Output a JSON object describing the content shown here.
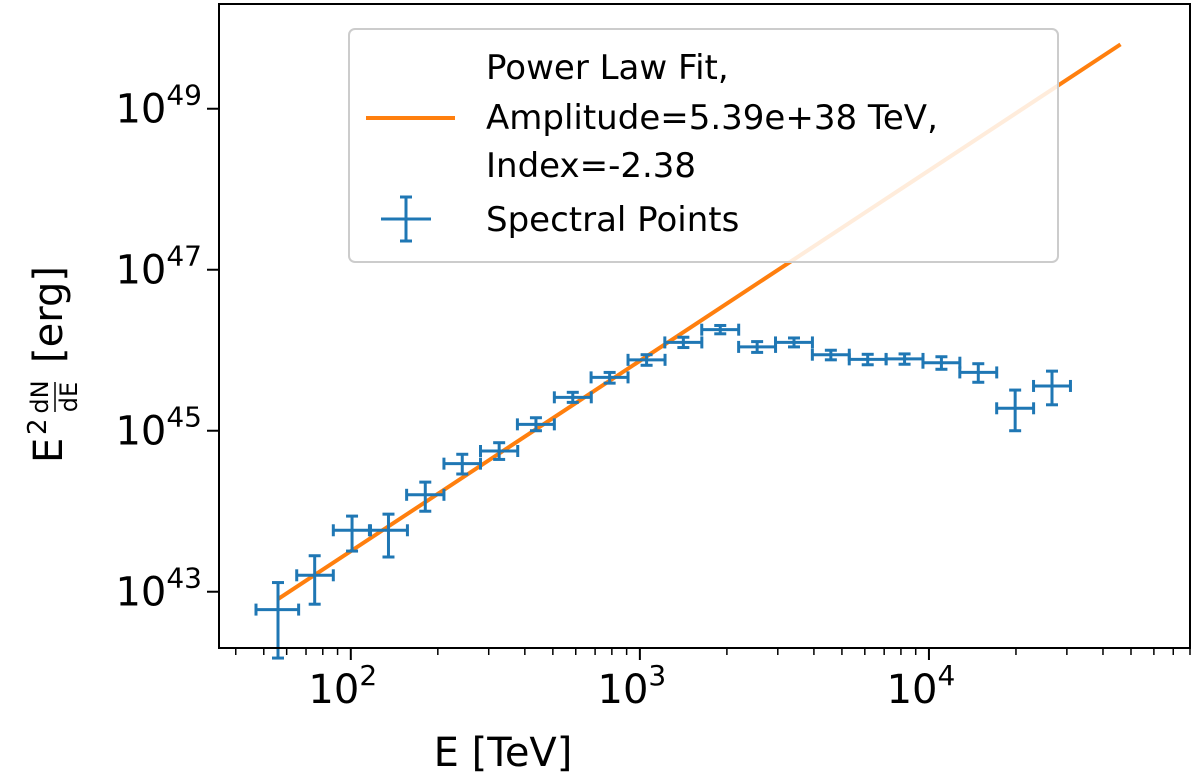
{
  "chart_data": {
    "type": "scatter",
    "xscale": "log",
    "yscale": "log",
    "xlabel": "E [TeV]",
    "ylabel": {
      "prefix": "E",
      "power": "2",
      "frac_num": "dN",
      "frac_den": "dE",
      "unit": "[erg]"
    },
    "xlim": [
      35,
      80000
    ],
    "ylim": [
      2e+42,
      2e+50
    ],
    "x_ticks": [
      {
        "value": 100,
        "base": "10",
        "exp": "2"
      },
      {
        "value": 1000,
        "base": "10",
        "exp": "3"
      },
      {
        "value": 10000,
        "base": "10",
        "exp": "4"
      }
    ],
    "y_ticks": [
      {
        "value": 1e+43,
        "base": "10",
        "exp": "43"
      },
      {
        "value": 1e+45,
        "base": "10",
        "exp": "45"
      },
      {
        "value": 1e+47,
        "base": "10",
        "exp": "47"
      },
      {
        "value": 1e+49,
        "base": "10",
        "exp": "49"
      }
    ],
    "series": [
      {
        "name": "Power Law Fit",
        "kind": "line",
        "color": "#ff7f0e",
        "x": [
          56,
          46000
        ],
        "y": [
          8.1e+42,
          6.3e+49
        ]
      },
      {
        "name": "Spectral Points",
        "kind": "errorbar",
        "color": "#1f77b4",
        "points": [
          {
            "x": 56,
            "xlo": 47,
            "xhi": 66,
            "y": 6e+42,
            "ylo": 1.5e+42,
            "yhi": 1.3e+43
          },
          {
            "x": 75,
            "xlo": 65,
            "xhi": 87,
            "y": 1.6e+43,
            "ylo": 7e+42,
            "yhi": 2.8e+43
          },
          {
            "x": 101,
            "xlo": 87,
            "xhi": 117,
            "y": 5.8e+43,
            "ylo": 3.2e+43,
            "yhi": 8.7e+43
          },
          {
            "x": 135,
            "xlo": 116,
            "xhi": 157,
            "y": 5.8e+43,
            "ylo": 2.7e+43,
            "yhi": 9.2e+43
          },
          {
            "x": 181,
            "xlo": 156,
            "xhi": 210,
            "y": 1.6e+44,
            "ylo": 1e+44,
            "yhi": 2.3e+44
          },
          {
            "x": 243,
            "xlo": 210,
            "xhi": 281,
            "y": 3.9e+44,
            "ylo": 2.9e+44,
            "yhi": 5.1e+44
          },
          {
            "x": 326,
            "xlo": 281,
            "xhi": 378,
            "y": 5.6e+44,
            "ylo": 4.4e+44,
            "yhi": 7.1e+44
          },
          {
            "x": 437,
            "xlo": 377,
            "xhi": 506,
            "y": 1.2e+45,
            "ylo": 1e+45,
            "yhi": 1.45e+45
          },
          {
            "x": 586,
            "xlo": 506,
            "xhi": 679,
            "y": 2.6e+45,
            "ylo": 2.25e+45,
            "yhi": 3e+45
          },
          {
            "x": 786,
            "xlo": 678,
            "xhi": 910,
            "y": 4.6e+45,
            "ylo": 3.9e+45,
            "yhi": 5.3e+45
          },
          {
            "x": 1055,
            "xlo": 910,
            "xhi": 1222,
            "y": 7.6e+45,
            "ylo": 6.5e+45,
            "yhi": 8.8e+45
          },
          {
            "x": 1414,
            "xlo": 1220,
            "xhi": 1638,
            "y": 1.25e+46,
            "ylo": 1.08e+46,
            "yhi": 1.45e+46
          },
          {
            "x": 1897,
            "xlo": 1637,
            "xhi": 2197,
            "y": 1.8e+46,
            "ylo": 1.6e+46,
            "yhi": 2.03e+46
          },
          {
            "x": 2545,
            "xlo": 2196,
            "xhi": 2947,
            "y": 1.1e+46,
            "ylo": 9.4e+45,
            "yhi": 1.28e+46
          },
          {
            "x": 3413,
            "xlo": 2946,
            "xhi": 3953,
            "y": 1.25e+46,
            "ylo": 1.1e+46,
            "yhi": 1.42e+46
          },
          {
            "x": 4578,
            "xlo": 3951,
            "xhi": 5302,
            "y": 8.8e+45,
            "ylo": 7.6e+45,
            "yhi": 1e+46
          },
          {
            "x": 6140,
            "xlo": 5300,
            "xhi": 7111,
            "y": 7.7e+45,
            "ylo": 6.6e+45,
            "yhi": 8.9e+45
          },
          {
            "x": 8235,
            "xlo": 7108,
            "xhi": 9538,
            "y": 7.8e+45,
            "ylo": 6.7e+45,
            "yhi": 9e+45
          },
          {
            "x": 11045,
            "xlo": 9534,
            "xhi": 12793,
            "y": 7e+45,
            "ylo": 5.8e+45,
            "yhi": 8.3e+45
          },
          {
            "x": 14815,
            "xlo": 12788,
            "xhi": 17159,
            "y": 5.3e+45,
            "ylo": 4e+45,
            "yhi": 6.8e+45
          },
          {
            "x": 19872,
            "xlo": 17152,
            "xhi": 23016,
            "y": 1.9e+45,
            "ylo": 1e+45,
            "yhi": 3.2e+45
          },
          {
            "x": 26653,
            "xlo": 23006,
            "xhi": 30871,
            "y": 3.6e+45,
            "ylo": 2.1e+45,
            "yhi": 5.5e+45
          }
        ]
      }
    ],
    "legend": {
      "location": "top-center",
      "entries": [
        {
          "series": "Power Law Fit",
          "lines": [
            "Power Law Fit,",
            "Amplitude=5.39e+38 TeV,",
            "Index=-2.38"
          ]
        },
        {
          "series": "Spectral Points",
          "lines": [
            "Spectral Points"
          ]
        }
      ]
    }
  }
}
